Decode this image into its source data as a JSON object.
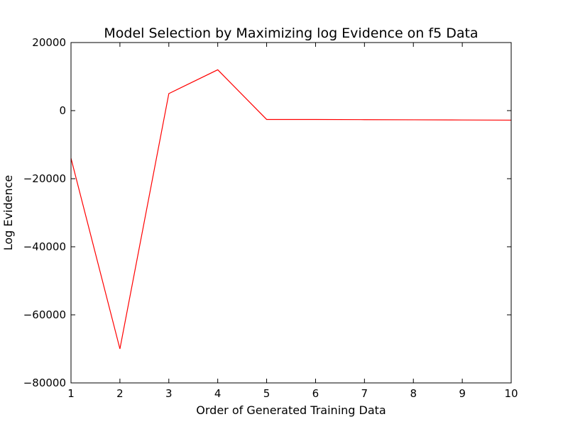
{
  "chart_data": {
    "type": "line",
    "title": "Model Selection by Maximizing log Evidence on f5 Data",
    "xlabel": "Order of Generated Training Data",
    "ylabel": "Log Evidence",
    "xlim": [
      1,
      10
    ],
    "ylim": [
      -80000,
      20000
    ],
    "x_ticks": [
      1,
      2,
      3,
      4,
      5,
      6,
      7,
      8,
      9,
      10
    ],
    "x_tick_labels": [
      "1",
      "2",
      "3",
      "4",
      "5",
      "6",
      "7",
      "8",
      "9",
      "10"
    ],
    "y_ticks": [
      20000,
      0,
      -20000,
      -40000,
      -60000,
      -80000
    ],
    "y_tick_labels": [
      "20000",
      "0",
      "−20000",
      "−40000",
      "−60000",
      "−80000"
    ],
    "grid": false,
    "series": [
      {
        "color": "#ff0000",
        "x": [
          1,
          2,
          3,
          4,
          5,
          6,
          7,
          8,
          9,
          10
        ],
        "values": [
          -14000,
          -70000,
          5000,
          12000,
          -2600,
          -2600,
          -2650,
          -2700,
          -2750,
          -2800
        ]
      }
    ]
  }
}
